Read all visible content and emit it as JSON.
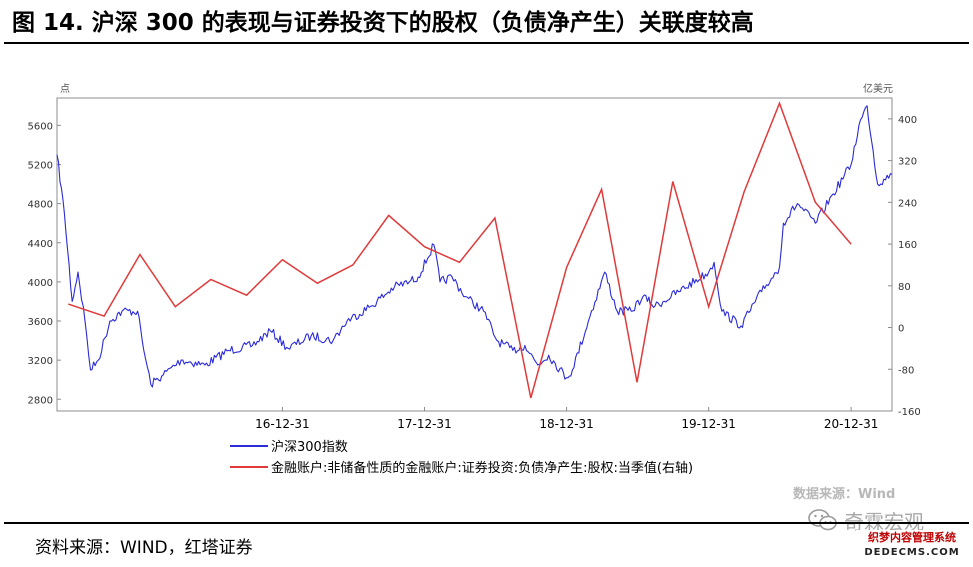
{
  "title": "图 14. 沪深 300 的表现与证券投资下的股权（负债净产生）关联度较高",
  "source": "资料来源：WIND，红塔证券",
  "watermark": "数据来源：Wind",
  "wechat_account": "奇霖宏观",
  "stamp": {
    "line1": "织梦内容管理系统",
    "line2": "DEDECMS.COM"
  },
  "colors": {
    "left_series": "#2b2bd8",
    "right_series": "#e03a3a",
    "axis": "#8c8c8c"
  },
  "chart_data": {
    "type": "line",
    "title": "",
    "left_axis": {
      "unit": "点",
      "ticks": [
        2800,
        3200,
        3600,
        4000,
        4400,
        4800,
        5200,
        5600
      ],
      "range": [
        2680,
        5880
      ]
    },
    "right_axis": {
      "unit": "亿美元",
      "ticks": [
        -160,
        -80,
        0,
        80,
        160,
        240,
        320,
        400
      ],
      "range": [
        -160,
        440
      ]
    },
    "x_axis": {
      "ticks": [
        "16-12-31",
        "17-12-31",
        "18-12-31",
        "19-12-31",
        "20-12-31"
      ],
      "range": [
        "2015-06-01",
        "2021-04-15"
      ]
    },
    "legend": {
      "position": "bottom"
    },
    "series": [
      {
        "name": "沪深300指数",
        "axis": "left",
        "x": [
          "2015-06-01",
          "2015-06-20",
          "2015-07-10",
          "2015-07-25",
          "2015-08-12",
          "2015-08-26",
          "2015-09-15",
          "2015-10-15",
          "2015-11-15",
          "2015-12-25",
          "2016-01-10",
          "2016-01-28",
          "2016-02-29",
          "2016-04-15",
          "2016-06-15",
          "2016-08-15",
          "2016-10-15",
          "2016-11-30",
          "2017-01-15",
          "2017-03-15",
          "2017-05-10",
          "2017-06-15",
          "2017-08-15",
          "2017-10-15",
          "2017-11-22",
          "2017-12-15",
          "2018-01-24",
          "2018-02-09",
          "2018-03-12",
          "2018-04-15",
          "2018-06-01",
          "2018-07-05",
          "2018-08-15",
          "2018-09-15",
          "2018-10-18",
          "2018-11-15",
          "2018-12-31",
          "2019-01-15",
          "2019-02-25",
          "2019-04-08",
          "2019-05-10",
          "2019-06-15",
          "2019-07-15",
          "2019-08-15",
          "2019-10-15",
          "2019-12-31",
          "2020-01-14",
          "2020-02-03",
          "2020-03-23",
          "2020-05-15",
          "2020-06-30",
          "2020-07-10",
          "2020-08-15",
          "2020-09-30",
          "2020-11-15",
          "2020-12-31",
          "2021-01-20",
          "2021-02-10",
          "2021-03-09",
          "2021-03-25",
          "2021-04-15"
        ],
        "values": [
          5300,
          4700,
          3800,
          4100,
          3600,
          3100,
          3200,
          3600,
          3700,
          3700,
          3300,
          2950,
          3050,
          3200,
          3150,
          3300,
          3350,
          3500,
          3320,
          3450,
          3400,
          3600,
          3750,
          3950,
          4000,
          4050,
          4380,
          4000,
          4050,
          3850,
          3700,
          3400,
          3300,
          3350,
          3150,
          3250,
          3020,
          3100,
          3600,
          4100,
          3700,
          3700,
          3850,
          3750,
          3900,
          4100,
          4200,
          3700,
          3550,
          3900,
          4150,
          4600,
          4800,
          4600,
          4900,
          5200,
          5600,
          5800,
          5000,
          5050,
          5100
        ]
      },
      {
        "name": "金融账户:非储备性质的金融账户:证券投资:负债净产生:股权:当季值(右轴)",
        "axis": "right",
        "x": [
          "2015-06-30",
          "2015-09-30",
          "2015-12-31",
          "2016-03-31",
          "2016-06-30",
          "2016-09-30",
          "2016-12-31",
          "2017-03-31",
          "2017-06-30",
          "2017-09-30",
          "2017-12-31",
          "2018-03-31",
          "2018-06-30",
          "2018-09-30",
          "2018-12-31",
          "2019-03-31",
          "2019-06-30",
          "2019-09-30",
          "2019-12-31",
          "2020-03-31",
          "2020-06-30",
          "2020-09-30",
          "2020-12-31"
        ],
        "values": [
          45,
          22,
          140,
          40,
          92,
          62,
          130,
          85,
          120,
          215,
          155,
          125,
          210,
          -135,
          115,
          265,
          -105,
          280,
          40,
          260,
          430,
          240,
          160
        ]
      }
    ]
  }
}
